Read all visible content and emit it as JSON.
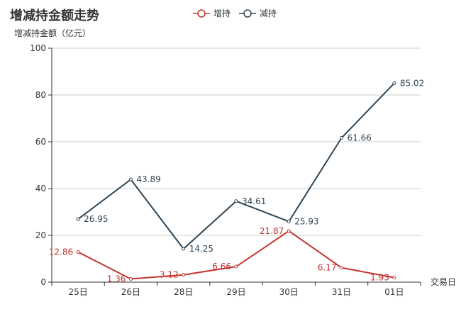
{
  "chart_data": {
    "type": "line",
    "title": "增减持金额走势",
    "xlabel": "交易日",
    "ylabel": "增减持金额（亿元）",
    "categories": [
      "25日",
      "26日",
      "28日",
      "29日",
      "30日",
      "31日",
      "01日"
    ],
    "ylim": [
      0,
      100
    ],
    "yticks": [
      0,
      20,
      40,
      60,
      80,
      100
    ],
    "grid": true,
    "legend_position": "top-center",
    "series": [
      {
        "name": "增持",
        "color": "#c23531",
        "label_side": "left",
        "values": [
          12.86,
          1.36,
          3.12,
          6.66,
          21.87,
          6.17,
          1.93
        ]
      },
      {
        "name": "减持",
        "color": "#2f4554",
        "label_side": "right",
        "values": [
          26.95,
          43.89,
          14.25,
          34.61,
          25.93,
          61.66,
          85.02
        ]
      }
    ]
  }
}
